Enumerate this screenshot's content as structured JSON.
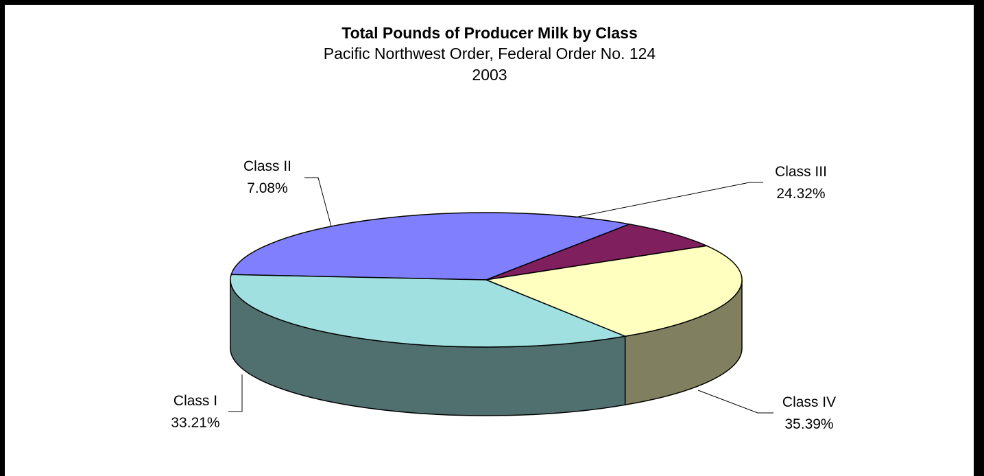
{
  "chart_data": {
    "type": "pie",
    "title": "Total Pounds of Producer Milk by Class",
    "subtitle": "Pacific Northwest Order, Federal Order No. 124",
    "year": "2003",
    "slices": [
      {
        "name": "Class I",
        "value": 33.21,
        "label": "33.21%",
        "top": "#8080ff",
        "side": "#404080"
      },
      {
        "name": "Class II",
        "value": 7.08,
        "label": "7.08%",
        "top": "#801f5e",
        "side": "#400f2f"
      },
      {
        "name": "Class III",
        "value": 24.32,
        "label": "24.32%",
        "top": "#ffffc0",
        "side": "#808060"
      },
      {
        "name": "Class IV",
        "value": 35.39,
        "label": "35.39%",
        "top": "#a0e0e0",
        "side": "#507070"
      }
    ]
  }
}
